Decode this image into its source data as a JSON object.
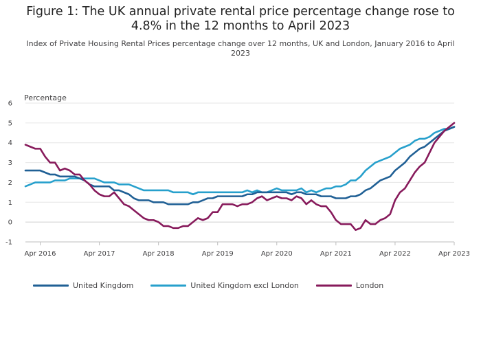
{
  "title": "Figure 1: The UK annual private rental price percentage change rose to 4.8% in the 12 months to April 2023",
  "subtitle": "Index of Private Housing Rental Prices percentage change over 12 months, UK and London, January 2016 to April 2023",
  "chart_data": {
    "type": "line",
    "ylabel": "Percentage",
    "xlabel": "",
    "ylim": [
      -1,
      6
    ],
    "yticks": [
      -1,
      0,
      1,
      2,
      3,
      4,
      5,
      6
    ],
    "grid": true,
    "legend_position": "bottom-left",
    "x_start": "2016-01",
    "x_end": "2023-04",
    "xticks": [
      {
        "x": "2016-04",
        "label": "Apr 2016"
      },
      {
        "x": "2017-04",
        "label": "Apr 2017"
      },
      {
        "x": "2018-04",
        "label": "Apr 2018"
      },
      {
        "x": "2019-04",
        "label": "Apr 2019"
      },
      {
        "x": "2020-04",
        "label": "Apr 2020"
      },
      {
        "x": "2021-04",
        "label": "Apr 2021"
      },
      {
        "x": "2022-04",
        "label": "Apr 2022"
      },
      {
        "x": "2023-04",
        "label": "Apr 2023"
      }
    ],
    "series": [
      {
        "name": "United Kingdom",
        "color": "#206095",
        "values": [
          2.6,
          2.6,
          2.6,
          2.6,
          2.5,
          2.4,
          2.4,
          2.3,
          2.3,
          2.3,
          2.3,
          2.2,
          2.1,
          1.9,
          1.8,
          1.8,
          1.8,
          1.8,
          1.6,
          1.6,
          1.5,
          1.4,
          1.2,
          1.1,
          1.1,
          1.1,
          1.0,
          1.0,
          1.0,
          0.9,
          0.9,
          0.9,
          0.9,
          0.9,
          1.0,
          1.0,
          1.1,
          1.2,
          1.2,
          1.3,
          1.3,
          1.3,
          1.3,
          1.3,
          1.3,
          1.4,
          1.4,
          1.5,
          1.5,
          1.5,
          1.5,
          1.5,
          1.5,
          1.5,
          1.4,
          1.5,
          1.5,
          1.4,
          1.4,
          1.4,
          1.3,
          1.3,
          1.3,
          1.2,
          1.2,
          1.2,
          1.3,
          1.3,
          1.4,
          1.6,
          1.7,
          1.9,
          2.1,
          2.2,
          2.3,
          2.6,
          2.8,
          3.0,
          3.3,
          3.5,
          3.7,
          3.8,
          4.0,
          4.2,
          4.4,
          4.6,
          4.7,
          4.8
        ]
      },
      {
        "name": "United Kingdom excl London",
        "color": "#27A0CC",
        "values": [
          1.8,
          1.9,
          2.0,
          2.0,
          2.0,
          2.0,
          2.1,
          2.1,
          2.1,
          2.2,
          2.2,
          2.2,
          2.2,
          2.2,
          2.2,
          2.1,
          2.0,
          2.0,
          2.0,
          1.9,
          1.9,
          1.9,
          1.8,
          1.7,
          1.6,
          1.6,
          1.6,
          1.6,
          1.6,
          1.6,
          1.5,
          1.5,
          1.5,
          1.5,
          1.4,
          1.5,
          1.5,
          1.5,
          1.5,
          1.5,
          1.5,
          1.5,
          1.5,
          1.5,
          1.5,
          1.6,
          1.5,
          1.6,
          1.5,
          1.5,
          1.6,
          1.7,
          1.6,
          1.6,
          1.6,
          1.6,
          1.7,
          1.5,
          1.6,
          1.5,
          1.6,
          1.7,
          1.7,
          1.8,
          1.8,
          1.9,
          2.1,
          2.1,
          2.3,
          2.6,
          2.8,
          3.0,
          3.1,
          3.2,
          3.3,
          3.5,
          3.7,
          3.8,
          3.9,
          4.1,
          4.2,
          4.2,
          4.3,
          4.5,
          4.6,
          4.7,
          4.7,
          4.8
        ]
      },
      {
        "name": "London",
        "color": "#871A5B",
        "values": [
          3.9,
          3.8,
          3.7,
          3.7,
          3.3,
          3.0,
          3.0,
          2.6,
          2.7,
          2.6,
          2.4,
          2.4,
          2.1,
          1.9,
          1.6,
          1.4,
          1.3,
          1.3,
          1.5,
          1.2,
          0.9,
          0.8,
          0.6,
          0.4,
          0.2,
          0.1,
          0.1,
          0.0,
          -0.2,
          -0.2,
          -0.3,
          -0.3,
          -0.2,
          -0.2,
          0.0,
          0.2,
          0.1,
          0.2,
          0.5,
          0.5,
          0.9,
          0.9,
          0.9,
          0.8,
          0.9,
          0.9,
          1.0,
          1.2,
          1.3,
          1.1,
          1.2,
          1.3,
          1.2,
          1.2,
          1.1,
          1.3,
          1.2,
          0.9,
          1.1,
          0.9,
          0.8,
          0.8,
          0.5,
          0.1,
          -0.1,
          -0.1,
          -0.1,
          -0.4,
          -0.3,
          0.1,
          -0.1,
          -0.1,
          0.1,
          0.2,
          0.4,
          1.1,
          1.5,
          1.7,
          2.1,
          2.5,
          2.8,
          3.0,
          3.5,
          4.0,
          4.3,
          4.6,
          4.8,
          5.0
        ]
      }
    ]
  }
}
